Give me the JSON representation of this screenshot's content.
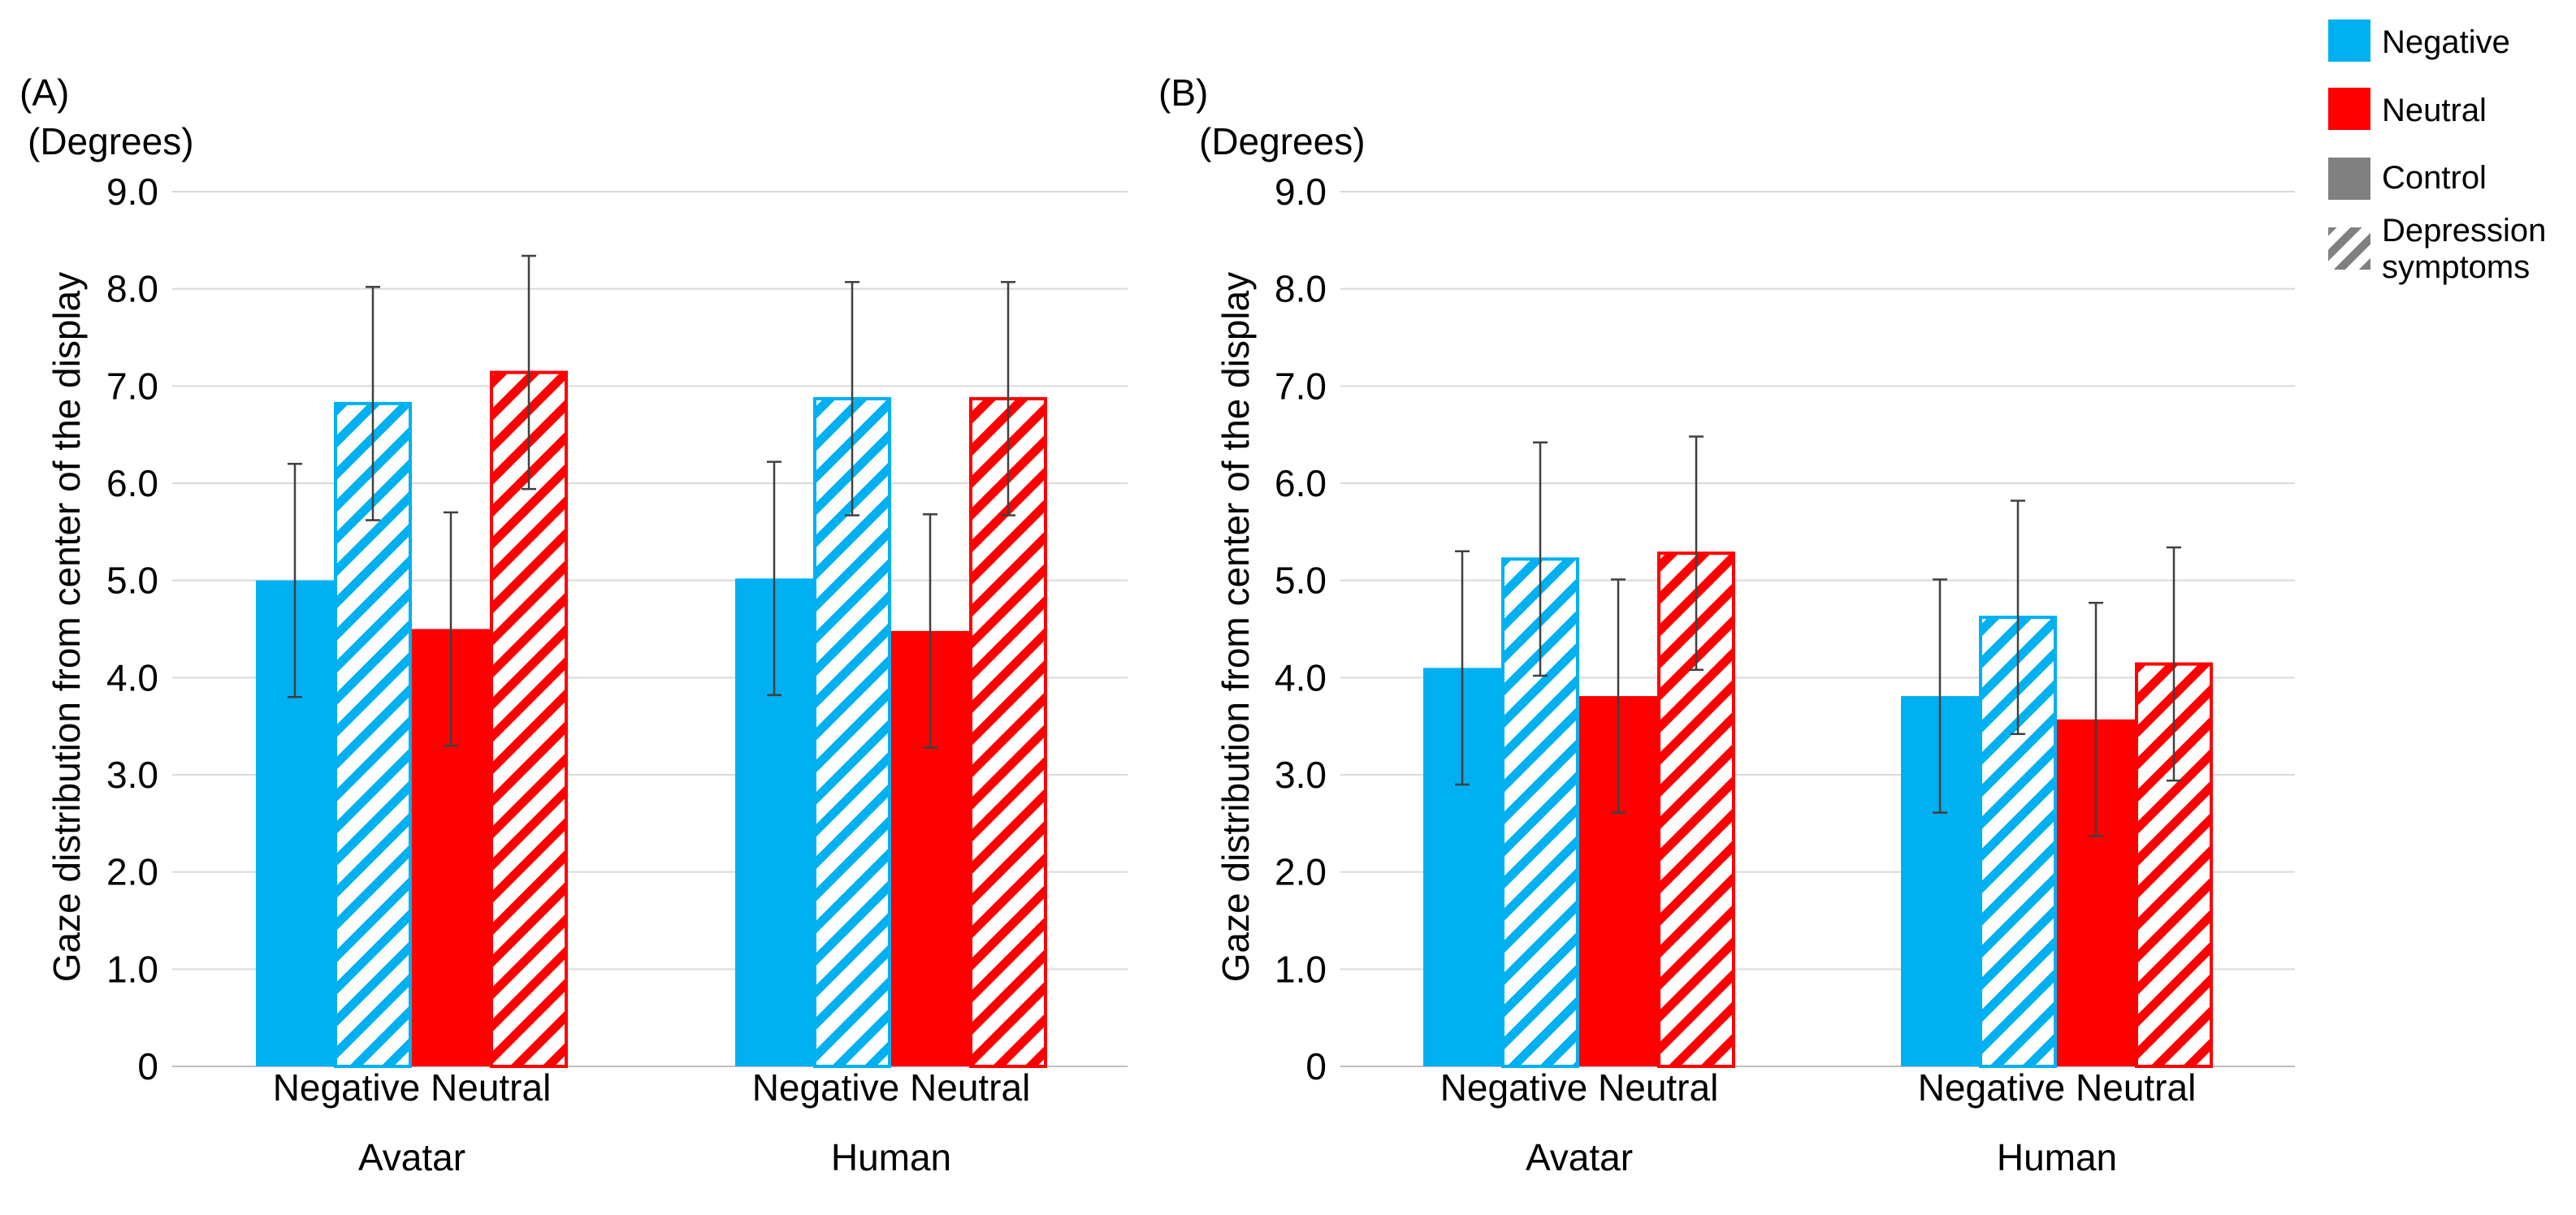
{
  "legend": {
    "items": [
      {
        "label": "Negative",
        "kind": "solid",
        "color": "#00B0F0"
      },
      {
        "label": "Neutral",
        "kind": "solid",
        "color": "#FF0000"
      },
      {
        "label": "Control",
        "kind": "solid",
        "color": "#808080"
      },
      {
        "label": "Depression symptoms",
        "lines": [
          "Depression",
          "symptoms"
        ],
        "kind": "hatch",
        "color": "#808080"
      }
    ]
  },
  "colors": {
    "negative": "#00B0F0",
    "neutral": "#FF0000",
    "grid": "#D9D9D9",
    "axis": "#BFBFBF",
    "error": "#404040"
  },
  "chart_data": [
    {
      "type": "bar",
      "panel_label": "(A)",
      "unit_label": "(Degrees)",
      "ylabel": "Gaze distribution from center of the display",
      "ylim": [
        0,
        9
      ],
      "yticks": [
        "0",
        "1.0",
        "2.0",
        "3.0",
        "4.0",
        "5.0",
        "6.0",
        "7.0",
        "8.0",
        "9.0"
      ],
      "groups": [
        {
          "name": "Avatar",
          "categories": [
            "Negative",
            "Neutral"
          ],
          "category_label": "Negative Neutral"
        },
        {
          "name": "Human",
          "categories": [
            "Negative",
            "Neutral"
          ],
          "category_label": "Negative Neutral"
        }
      ],
      "series": [
        {
          "name": "Negative Control",
          "emotion": "negative",
          "pattern": "solid",
          "values": [
            5.0,
            5.02
          ],
          "errors": [
            1.2,
            1.2
          ]
        },
        {
          "name": "Negative Depression symptoms",
          "emotion": "negative",
          "pattern": "hatch",
          "values": [
            6.82,
            6.87
          ],
          "errors": [
            1.2,
            1.2
          ]
        },
        {
          "name": "Neutral Control",
          "emotion": "neutral",
          "pattern": "solid",
          "values": [
            4.5,
            4.48
          ],
          "errors": [
            1.2,
            1.2
          ]
        },
        {
          "name": "Neutral Depression symptoms",
          "emotion": "neutral",
          "pattern": "hatch",
          "values": [
            7.14,
            6.87
          ],
          "errors": [
            1.2,
            1.2
          ]
        }
      ]
    },
    {
      "type": "bar",
      "panel_label": "(B)",
      "unit_label": "(Degrees)",
      "ylabel": "Gaze distribution from center of the display",
      "ylim": [
        0,
        9
      ],
      "yticks": [
        "0",
        "1.0",
        "2.0",
        "3.0",
        "4.0",
        "5.0",
        "6.0",
        "7.0",
        "8.0",
        "9.0"
      ],
      "groups": [
        {
          "name": "Avatar",
          "categories": [
            "Negative",
            "Neutral"
          ],
          "category_label": "Negative Neutral"
        },
        {
          "name": "Human",
          "categories": [
            "Negative",
            "Neutral"
          ],
          "category_label": "Negative Neutral"
        }
      ],
      "series": [
        {
          "name": "Negative Control",
          "emotion": "negative",
          "pattern": "solid",
          "values": [
            4.1,
            3.81
          ],
          "errors": [
            1.2,
            1.2
          ]
        },
        {
          "name": "Negative Depression symptoms",
          "emotion": "negative",
          "pattern": "hatch",
          "values": [
            5.22,
            4.62
          ],
          "errors": [
            1.2,
            1.2
          ]
        },
        {
          "name": "Neutral Control",
          "emotion": "neutral",
          "pattern": "solid",
          "values": [
            3.81,
            3.57
          ],
          "errors": [
            1.2,
            1.2
          ]
        },
        {
          "name": "Neutral Depression symptoms",
          "emotion": "neutral",
          "pattern": "hatch",
          "values": [
            5.28,
            4.14
          ],
          "errors": [
            1.2,
            1.2
          ]
        }
      ]
    }
  ]
}
